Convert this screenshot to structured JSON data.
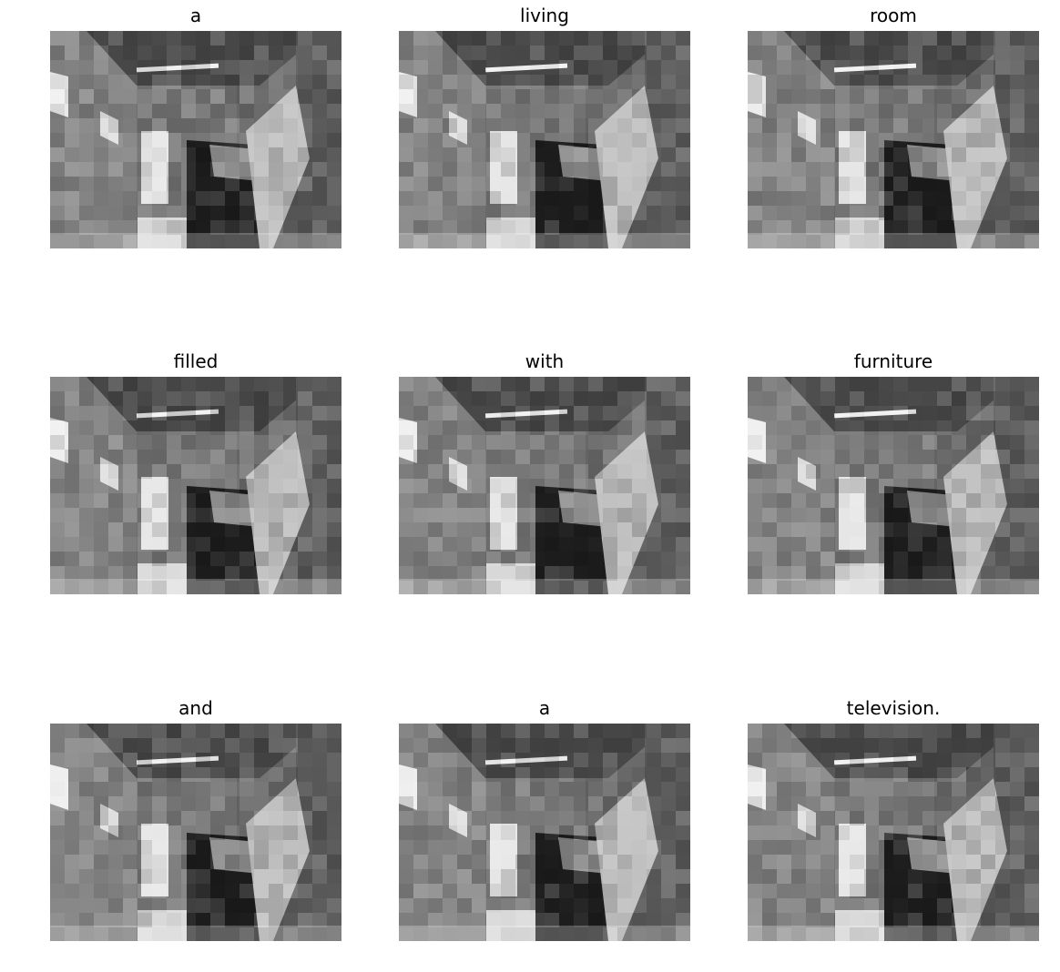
{
  "figure": {
    "panels": [
      {
        "word": "a",
        "image_desc": "grayscale attention-overlay photo of a living room"
      },
      {
        "word": "living",
        "image_desc": "grayscale attention-overlay photo of a living room"
      },
      {
        "word": "room",
        "image_desc": "grayscale attention-overlay photo of a living room"
      },
      {
        "word": "filled",
        "image_desc": "grayscale attention-overlay photo of a living room"
      },
      {
        "word": "with",
        "image_desc": "grayscale attention-overlay photo of a living room"
      },
      {
        "word": "furniture",
        "image_desc": "grayscale attention-overlay photo of a living room"
      },
      {
        "word": "and",
        "image_desc": "grayscale attention-overlay photo of a living room"
      },
      {
        "word": "a",
        "image_desc": "grayscale attention-overlay photo of a living room"
      },
      {
        "word": "television.",
        "image_desc": "grayscale attention-overlay photo of a living room"
      }
    ]
  }
}
